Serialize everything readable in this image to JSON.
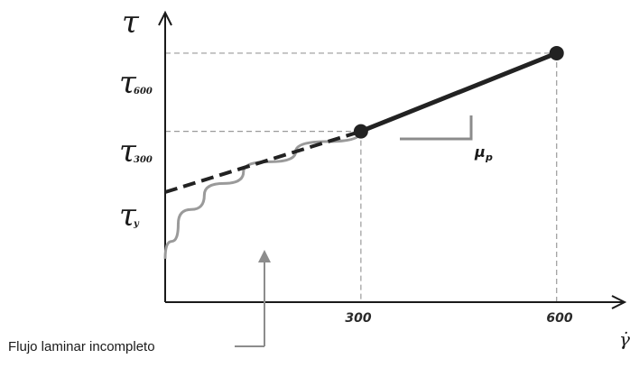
{
  "chart_data": {
    "type": "line",
    "title": "",
    "xlabel": "γ̇",
    "ylabel": "τ",
    "x_ticks": [
      "300",
      "600"
    ],
    "y_ticks": [
      {
        "symbol": "τ",
        "sub": "600"
      },
      {
        "symbol": "τ",
        "sub": "300"
      },
      {
        "symbol": "τ",
        "sub": "y"
      }
    ],
    "xlim": [
      0,
      700
    ],
    "ylim": [
      0,
      100
    ],
    "series": [
      {
        "values_x": [
          0,
          20,
          60,
          120,
          200,
          300
        ],
        "values_y": [
          15,
          27,
          37,
          45,
          52,
          59
        ],
        "style": "curve-gray"
      },
      {
        "values_x": [
          0,
          300
        ],
        "values_y": [
          38,
          59
        ],
        "style": "dashed-black"
      },
      {
        "values_x": [
          300,
          600
        ],
        "values_y": [
          59,
          86
        ],
        "style": "solid-black"
      }
    ],
    "points": [
      {
        "x": 300,
        "y": 59
      },
      {
        "x": 600,
        "y": 86
      }
    ],
    "slope_label": {
      "symbol": "μ",
      "sub": "p"
    },
    "annotation": "Flujo laminar incompleto",
    "colors": {
      "bingham": "#222222",
      "curve": "#9a9a9a",
      "guides": "#9a9a9a",
      "axis": "#1a1a1a"
    }
  }
}
